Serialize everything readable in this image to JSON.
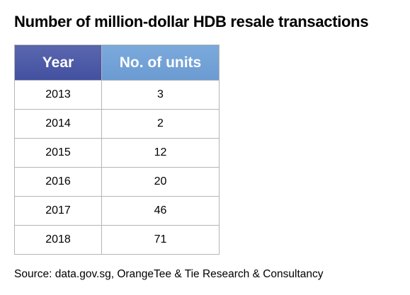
{
  "title": "Number of million-dollar HDB resale transactions",
  "source": "Source: data.gov.sg, OrangeTee & Tie Research & Consultancy",
  "colors": {
    "header_year": "#4a57a6",
    "header_units": "#72a2d8",
    "border": "#b5b5b5"
  },
  "chart_data": {
    "type": "table",
    "title": "Number of million-dollar HDB resale transactions",
    "columns": [
      "Year",
      "No. of units"
    ],
    "rows": [
      [
        "2013",
        "3"
      ],
      [
        "2014",
        "2"
      ],
      [
        "2015",
        "12"
      ],
      [
        "2016",
        "20"
      ],
      [
        "2017",
        "46"
      ],
      [
        "2018",
        "71"
      ]
    ]
  }
}
